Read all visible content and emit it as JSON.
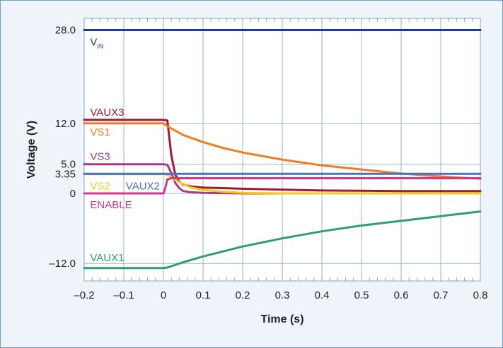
{
  "chart_data": {
    "type": "line",
    "title": "",
    "xlabel": "Time (s)",
    "ylabel": "Voltage (V)",
    "xlim": [
      -0.2,
      0.8
    ],
    "ylim": [
      -15,
      30
    ],
    "x_ticks": [
      "–0.2",
      "–0.1",
      "0",
      "0.1",
      "0.2",
      "0.3",
      "0.4",
      "0.5",
      "0.6",
      "0.7",
      "0.8"
    ],
    "x_tick_values": [
      -0.2,
      -0.1,
      0,
      0.1,
      0.2,
      0.3,
      0.4,
      0.5,
      0.6,
      0.7,
      0.8
    ],
    "y_ticks": [
      {
        "value": 28.0,
        "label": "28.0"
      },
      {
        "value": 12.0,
        "label": "12.0"
      },
      {
        "value": 5.0,
        "label": "5.0"
      },
      {
        "value": 3.35,
        "label": "3.35"
      },
      {
        "value": 0,
        "label": "0"
      },
      {
        "value": -12.0,
        "label": "–12.0"
      }
    ],
    "grid": true,
    "series": [
      {
        "name": "V",
        "subscript": "IN",
        "color": "#1f3a93",
        "x": [
          -0.2,
          0.8
        ],
        "y": [
          28.0,
          28.0
        ]
      },
      {
        "name": "VAUX3",
        "color": "#9e1b32",
        "x": [
          -0.2,
          0.0,
          0.01,
          0.02,
          0.03,
          0.04,
          0.05,
          0.07,
          0.1,
          0.2,
          0.4,
          0.6,
          0.8
        ],
        "y": [
          12.6,
          12.6,
          12.5,
          6.5,
          3.2,
          2.0,
          1.5,
          1.2,
          1.0,
          0.8,
          0.5,
          0.4,
          0.4
        ]
      },
      {
        "name": "VS1",
        "color": "#f07d23",
        "x": [
          -0.2,
          0.0,
          0.01,
          0.05,
          0.1,
          0.15,
          0.2,
          0.3,
          0.4,
          0.5,
          0.6,
          0.7,
          0.8
        ],
        "y": [
          12.0,
          12.0,
          11.5,
          10.0,
          8.8,
          7.8,
          7.0,
          5.8,
          4.8,
          4.1,
          3.4,
          2.9,
          2.5
        ]
      },
      {
        "name": "VS3",
        "color": "#a23c85",
        "x": [
          -0.2,
          0.0,
          0.01,
          0.02,
          0.03,
          0.04,
          0.05,
          0.07,
          0.1,
          0.2,
          0.4,
          0.6,
          0.8
        ],
        "y": [
          5.0,
          5.0,
          4.9,
          3.5,
          1.8,
          0.9,
          0.4,
          0.2,
          0.1,
          0.0,
          0.0,
          0.0,
          0.0
        ]
      },
      {
        "name": "VS2",
        "color": "#f7c91a",
        "x": [
          -0.2,
          0.0,
          0.01,
          0.02,
          0.03,
          0.05,
          0.07,
          0.1,
          0.15,
          0.2,
          0.3,
          0.4,
          0.8
        ],
        "y": [
          3.3,
          3.3,
          3.2,
          2.8,
          2.3,
          1.6,
          1.0,
          0.6,
          0.3,
          0.1,
          0.0,
          0.0,
          0.0
        ]
      },
      {
        "name": "VAUX2",
        "color": "#4a72b9",
        "x": [
          -0.2,
          0.8
        ],
        "y": [
          3.35,
          3.35
        ]
      },
      {
        "name": "ENABLE",
        "color": "#d4368f",
        "x": [
          -0.2,
          0.0,
          0.005,
          0.01,
          0.02,
          0.8
        ],
        "y": [
          0.0,
          0.0,
          1.0,
          2.4,
          2.6,
          2.6
        ]
      },
      {
        "name": "VAUX1",
        "color": "#2e9e6f",
        "x": [
          -0.2,
          0.0,
          0.01,
          0.05,
          0.1,
          0.2,
          0.3,
          0.4,
          0.5,
          0.6,
          0.7,
          0.8
        ],
        "y": [
          -12.8,
          -12.8,
          -12.7,
          -11.8,
          -10.8,
          -9.1,
          -7.7,
          -6.5,
          -5.5,
          -4.7,
          -3.9,
          -3.1
        ]
      }
    ]
  }
}
